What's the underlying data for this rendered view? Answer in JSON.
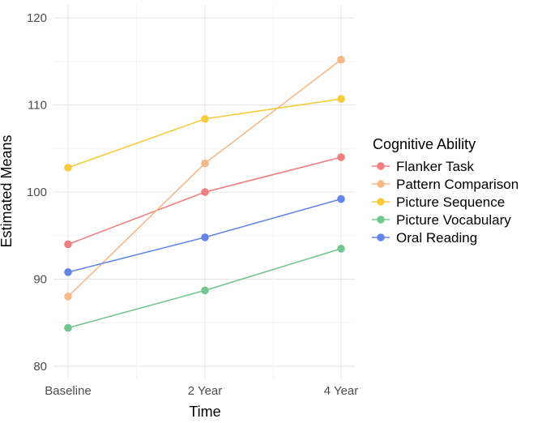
{
  "chart_data": {
    "type": "line",
    "title": "",
    "xlabel": "Time",
    "ylabel": "Estimated Means",
    "categories": [
      "Baseline",
      "2 Year",
      "4 Year"
    ],
    "ylim": [
      78.5,
      121.5
    ],
    "yticks": [
      80,
      90,
      100,
      110,
      120
    ],
    "grid": true,
    "legend_title": "Cognitive Ability",
    "legend_position": "right",
    "series": [
      {
        "name": "Flanker Task",
        "color": "#F08080",
        "values": [
          94.0,
          100.0,
          104.0
        ]
      },
      {
        "name": "Pattern Comparison",
        "color": "#F6B98A",
        "values": [
          88.0,
          103.3,
          115.2
        ]
      },
      {
        "name": "Picture Sequence",
        "color": "#F5CB3F",
        "values": [
          102.8,
          108.4,
          110.7
        ]
      },
      {
        "name": "Picture Vocabulary",
        "color": "#74C690",
        "values": [
          84.4,
          88.7,
          93.5
        ]
      },
      {
        "name": "Oral Reading",
        "color": "#6486E8",
        "values": [
          90.8,
          94.8,
          99.2
        ]
      }
    ]
  }
}
